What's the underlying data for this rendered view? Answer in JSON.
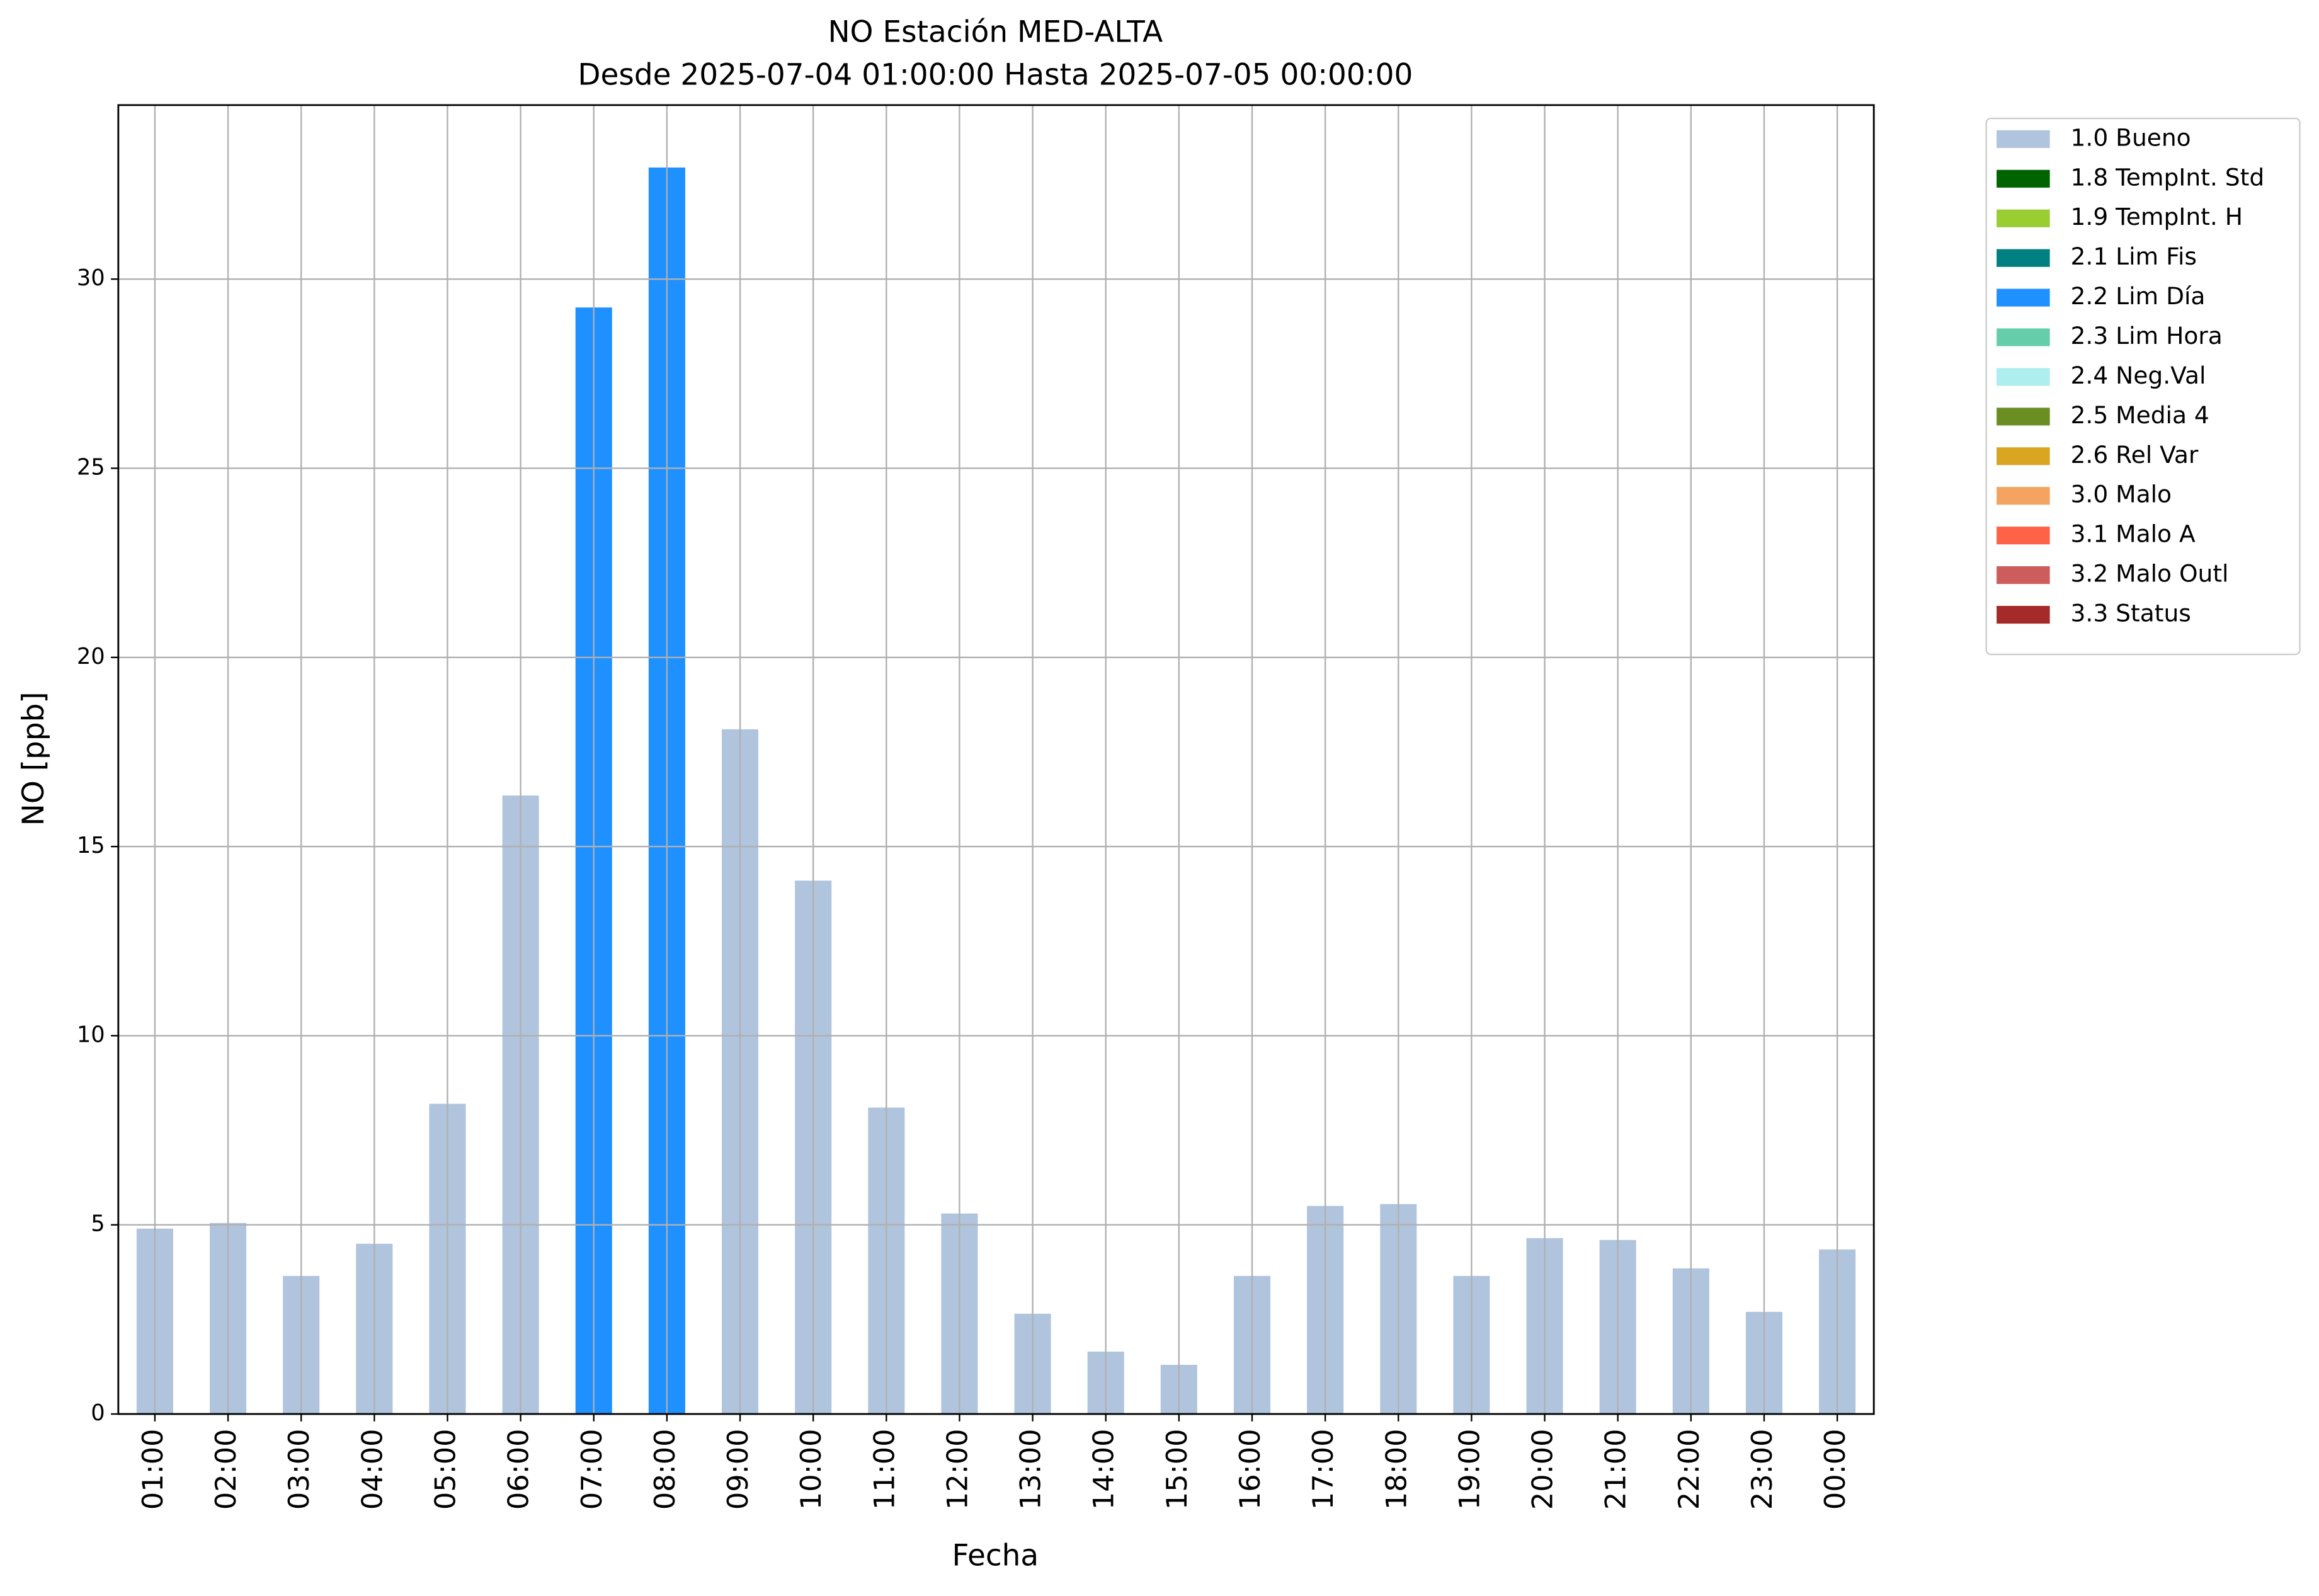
{
  "chart_data": {
    "type": "bar",
    "stacked": true,
    "title": "NO Estación MED-ALTA",
    "subtitle": "Desde 2025-07-04 01:00:00 Hasta 2025-07-05 00:00:00",
    "x_label": "Fecha",
    "y_label": "NO [ppb]",
    "categories": [
      "01:00",
      "02:00",
      "03:00",
      "04:00",
      "05:00",
      "06:00",
      "07:00",
      "08:00",
      "09:00",
      "10:00",
      "11:00",
      "12:00",
      "13:00",
      "14:00",
      "15:00",
      "16:00",
      "17:00",
      "18:00",
      "19:00",
      "20:00",
      "21:00",
      "22:00",
      "23:00",
      "00:00"
    ],
    "series": [
      {
        "name": "1.0 Bueno",
        "color": "#b0c4de",
        "values": [
          4.9,
          5.05,
          3.65,
          4.5,
          8.2,
          16.35,
          null,
          null,
          18.1,
          14.1,
          8.1,
          5.3,
          2.65,
          1.65,
          1.3,
          3.65,
          5.5,
          5.55,
          3.65,
          4.65,
          4.6,
          3.85,
          2.7,
          4.35
        ]
      },
      {
        "name": "1.8 TempInt. Std",
        "color": "#006400",
        "values": [
          null,
          null,
          null,
          null,
          null,
          null,
          null,
          null,
          null,
          null,
          null,
          null,
          null,
          null,
          null,
          null,
          null,
          null,
          null,
          null,
          null,
          null,
          null,
          null
        ]
      },
      {
        "name": "1.9 TempInt. H",
        "color": "#9acd32",
        "values": [
          null,
          null,
          null,
          null,
          null,
          null,
          null,
          null,
          null,
          null,
          null,
          null,
          null,
          null,
          null,
          null,
          null,
          null,
          null,
          null,
          null,
          null,
          null,
          null
        ]
      },
      {
        "name": "2.1 Lim Fis",
        "color": "#008080",
        "values": [
          null,
          null,
          null,
          null,
          null,
          null,
          null,
          null,
          null,
          null,
          null,
          null,
          null,
          null,
          null,
          null,
          null,
          null,
          null,
          null,
          null,
          null,
          null,
          null
        ]
      },
      {
        "name": "2.2 Lim Día",
        "color": "#1e90ff",
        "values": [
          null,
          null,
          null,
          null,
          null,
          null,
          29.25,
          32.95,
          null,
          null,
          null,
          null,
          null,
          null,
          null,
          null,
          null,
          null,
          null,
          null,
          null,
          null,
          null,
          null
        ]
      },
      {
        "name": "2.3 Lim Hora",
        "color": "#66cdaa",
        "values": [
          null,
          null,
          null,
          null,
          null,
          null,
          null,
          null,
          null,
          null,
          null,
          null,
          null,
          null,
          null,
          null,
          null,
          null,
          null,
          null,
          null,
          null,
          null,
          null
        ]
      },
      {
        "name": "2.4 Neg.Val",
        "color": "#afeeee",
        "values": [
          null,
          null,
          null,
          null,
          null,
          null,
          null,
          null,
          null,
          null,
          null,
          null,
          null,
          null,
          null,
          null,
          null,
          null,
          null,
          null,
          null,
          null,
          null,
          null
        ]
      },
      {
        "name": "2.5 Media 4",
        "color": "#6b8e23",
        "values": [
          null,
          null,
          null,
          null,
          null,
          null,
          null,
          null,
          null,
          null,
          null,
          null,
          null,
          null,
          null,
          null,
          null,
          null,
          null,
          null,
          null,
          null,
          null,
          null
        ]
      },
      {
        "name": "2.6 Rel Var",
        "color": "#daa520",
        "values": [
          null,
          null,
          null,
          null,
          null,
          null,
          null,
          null,
          null,
          null,
          null,
          null,
          null,
          null,
          null,
          null,
          null,
          null,
          null,
          null,
          null,
          null,
          null,
          null
        ]
      },
      {
        "name": "3.0 Malo",
        "color": "#f4a460",
        "values": [
          null,
          null,
          null,
          null,
          null,
          null,
          null,
          null,
          null,
          null,
          null,
          null,
          null,
          null,
          null,
          null,
          null,
          null,
          null,
          null,
          null,
          null,
          null,
          null
        ]
      },
      {
        "name": "3.1 Malo A",
        "color": "#ff6347",
        "values": [
          null,
          null,
          null,
          null,
          null,
          null,
          null,
          null,
          null,
          null,
          null,
          null,
          null,
          null,
          null,
          null,
          null,
          null,
          null,
          null,
          null,
          null,
          null,
          null
        ]
      },
      {
        "name": "3.2 Malo Outl",
        "color": "#cd5c5c",
        "values": [
          null,
          null,
          null,
          null,
          null,
          null,
          null,
          null,
          null,
          null,
          null,
          null,
          null,
          null,
          null,
          null,
          null,
          null,
          null,
          null,
          null,
          null,
          null,
          null
        ]
      },
      {
        "name": "3.3 Status",
        "color": "#a52a2a",
        "values": [
          null,
          null,
          null,
          null,
          null,
          null,
          null,
          null,
          null,
          null,
          null,
          null,
          null,
          null,
          null,
          null,
          null,
          null,
          null,
          null,
          null,
          null,
          null,
          null
        ]
      }
    ],
    "ylim": [
      0,
      34.6
    ],
    "yticks": [
      0,
      5,
      10,
      15,
      20,
      25,
      30
    ],
    "grid": true,
    "legend": "outside-right"
  }
}
